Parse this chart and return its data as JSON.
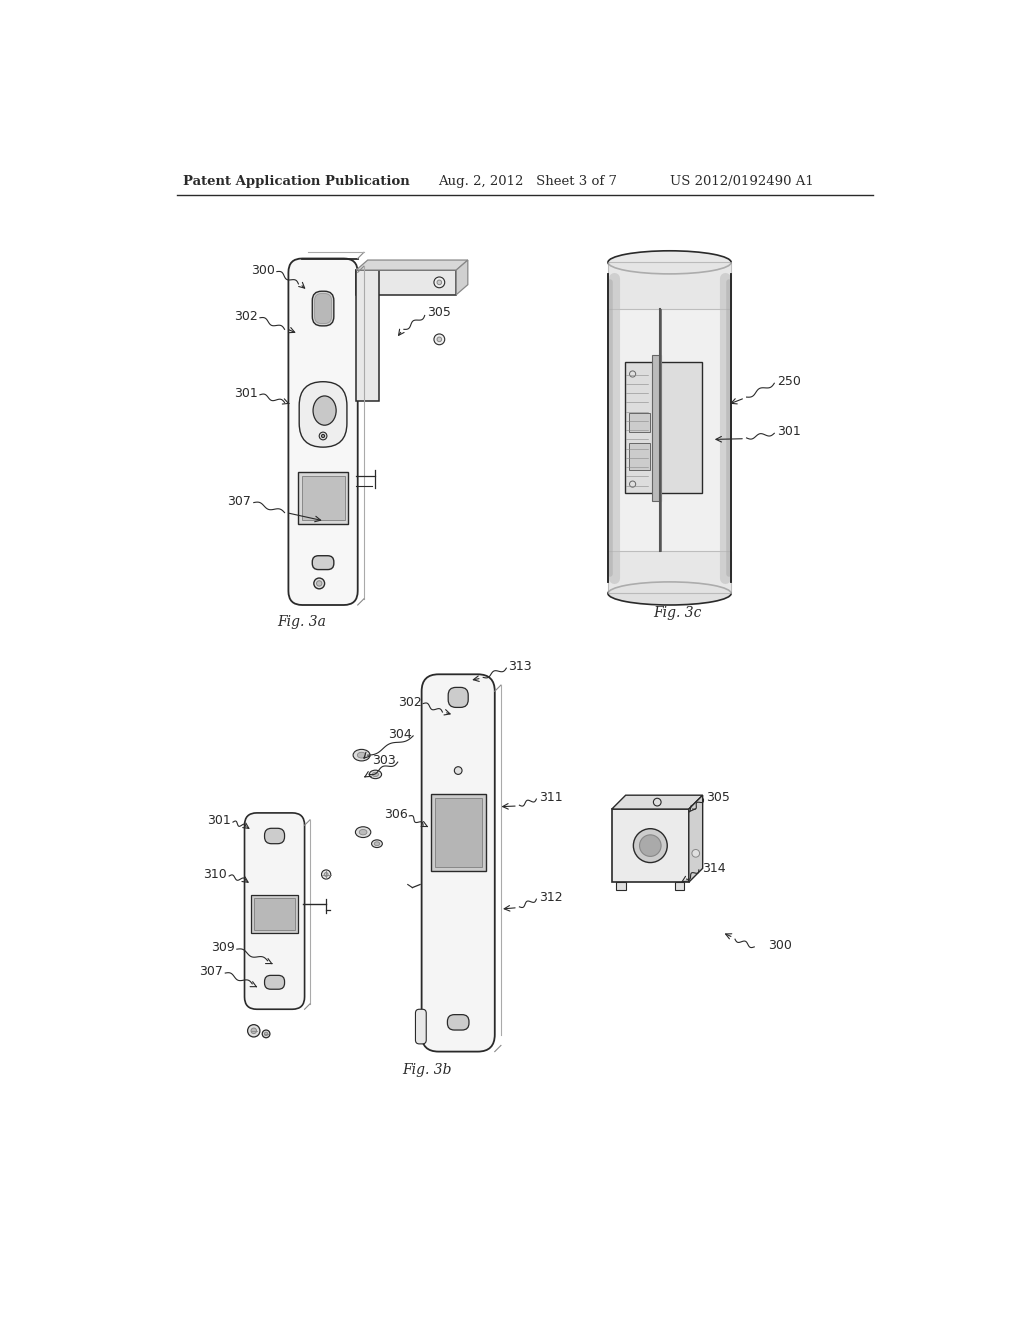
{
  "header_left": "Patent Application Publication",
  "header_mid": "Aug. 2, 2012   Sheet 3 of 7",
  "header_right": "US 2012/0192490 A1",
  "fig3a_label": "Fig. 3a",
  "fig3b_label": "Fig. 3b",
  "fig3c_label": "Fig. 3c",
  "background_color": "#ffffff",
  "line_color": "#2a2a2a",
  "header_fontsize": 9,
  "label_fontsize": 9,
  "fig_label_fontsize": 10
}
